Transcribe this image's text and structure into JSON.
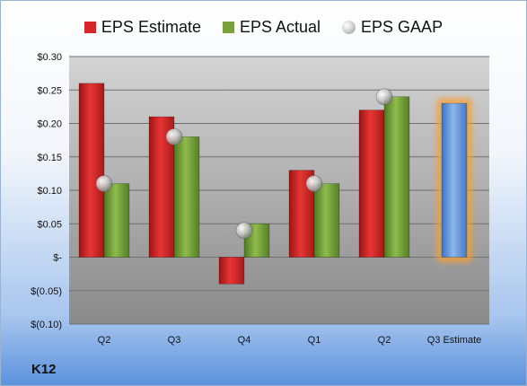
{
  "company": "K12",
  "colors": {
    "estimate": "#d62728",
    "actual": "#77a33a",
    "gaap": "#bdbdbd",
    "current_estimate": "#6ea1e0",
    "highlight": "#f5a030"
  },
  "legend": [
    {
      "label": "EPS Estimate",
      "marker": "square",
      "color": "#d62728"
    },
    {
      "label": "EPS Actual",
      "marker": "square",
      "color": "#77a33a"
    },
    {
      "label": "EPS GAAP",
      "marker": "circle",
      "color": "#bdbdbd"
    }
  ],
  "chart_data": {
    "type": "bar",
    "categories": [
      "Q2",
      "Q3",
      "Q4",
      "Q1",
      "Q2",
      "Q3 Estimate"
    ],
    "series": [
      {
        "name": "EPS Estimate",
        "values": [
          0.26,
          0.21,
          -0.04,
          0.13,
          0.22,
          null
        ]
      },
      {
        "name": "EPS Actual",
        "values": [
          0.11,
          0.18,
          0.05,
          0.11,
          0.24,
          null
        ]
      },
      {
        "name": "EPS GAAP",
        "values": [
          0.11,
          0.18,
          0.04,
          0.11,
          0.24,
          null
        ]
      }
    ],
    "current_estimate": {
      "category": "Q3 Estimate",
      "value": 0.23
    },
    "ylim": [
      -0.1,
      0.3
    ],
    "yticks": [
      0.3,
      0.25,
      0.2,
      0.15,
      0.1,
      0.05,
      0.0,
      -0.05,
      -0.1
    ],
    "ytick_labels": [
      "$0.30",
      "$0.25",
      "$0.20",
      "$0.15",
      "$0.10",
      "$0.05",
      "$-",
      "$(0.05)",
      "$(0.10)"
    ],
    "grid": true,
    "legend_position": "top"
  }
}
